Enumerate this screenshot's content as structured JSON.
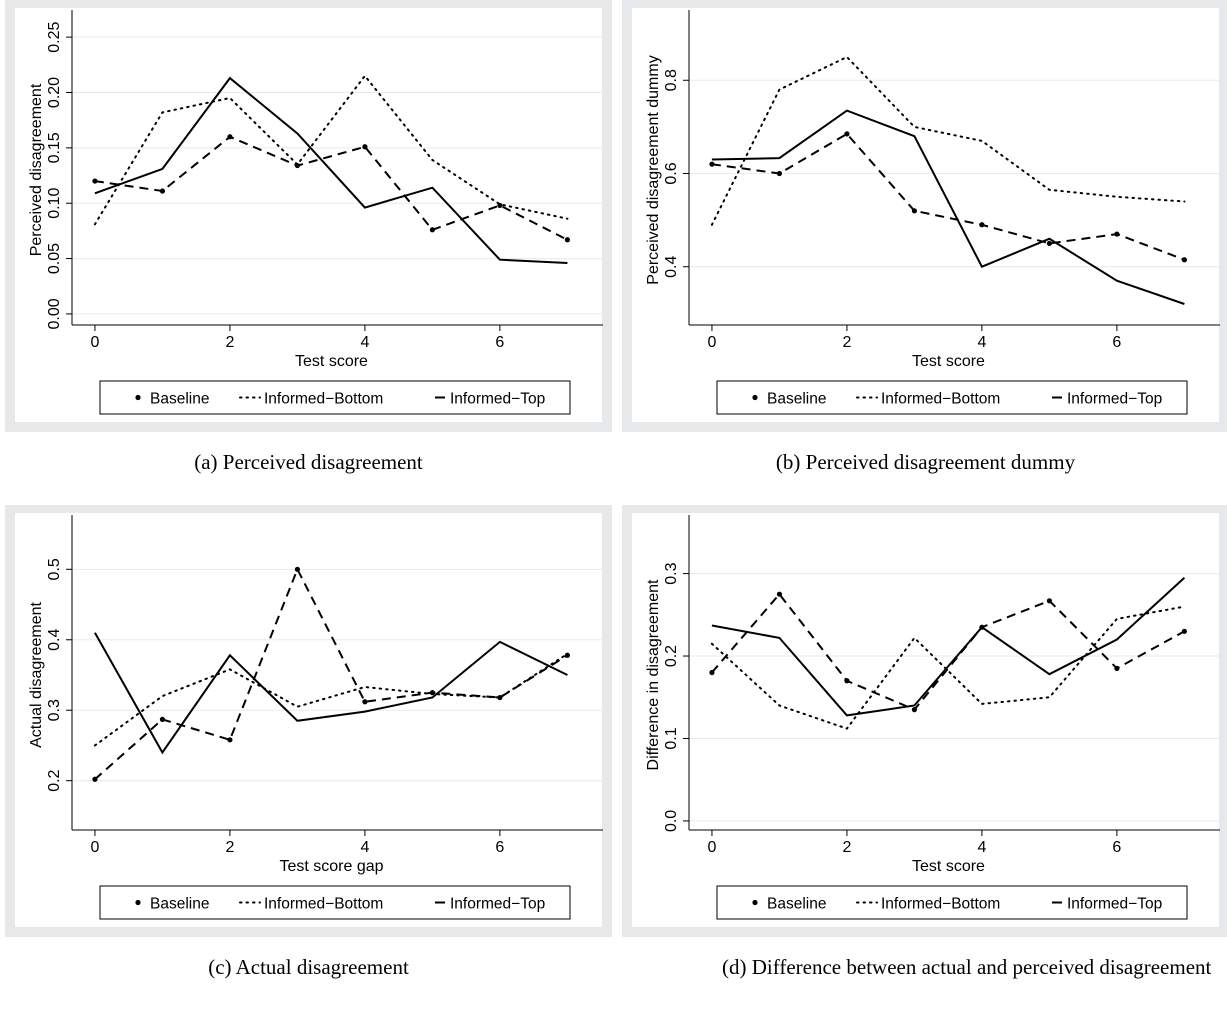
{
  "chart_data": [
    {
      "type": "line",
      "caption": "(a) Perceived disagreement",
      "xlabel": "Test score",
      "ylabel": "Perceived disagreement",
      "x": [
        0,
        1,
        2,
        3,
        4,
        5,
        6,
        7
      ],
      "xlim": [
        -0.34,
        7.35
      ],
      "xticks": [
        0,
        2,
        4,
        6
      ],
      "ylim": [
        -0.01,
        0.27
      ],
      "yticks": [
        {
          "value": 0,
          "label": "0.00"
        },
        0.05,
        {
          "value": 0.1,
          "label": "0.10"
        },
        0.15,
        {
          "value": 0.2,
          "label": "0.20"
        },
        0.25
      ],
      "grid": true,
      "series": [
        {
          "name": "Baseline",
          "color": "#000000",
          "line_style": "dash",
          "markers": true,
          "values": [
            0.12,
            0.111,
            0.16,
            0.134,
            0.151,
            0.076,
            0.098,
            0.067
          ]
        },
        {
          "name": "Informed−Bottom",
          "color": "#000000",
          "line_style": "dot",
          "markers": false,
          "values": [
            0.081,
            0.182,
            0.195,
            0.135,
            0.215,
            0.139,
            0.099,
            0.086
          ]
        },
        {
          "name": "Informed−Top",
          "color": "#000000",
          "line_style": "solid",
          "markers": false,
          "values": [
            0.109,
            0.131,
            0.213,
            0.163,
            0.096,
            0.114,
            0.049,
            0.046
          ]
        }
      ]
    },
    {
      "type": "line",
      "caption": "(b) Perceived disagreement dummy",
      "xlabel": "Test score",
      "ylabel": "Perceived disagreement dummy",
      "x": [
        0,
        1,
        2,
        3,
        4,
        5,
        6,
        7
      ],
      "xlim": [
        -0.34,
        7.35
      ],
      "xticks": [
        0,
        2,
        4,
        6
      ],
      "ylim": [
        0.275,
        0.94
      ],
      "yticks": [
        0.4,
        0.6,
        0.8
      ],
      "grid": true,
      "series": [
        {
          "name": "Baseline",
          "color": "#000000",
          "line_style": "dash",
          "markers": true,
          "values": [
            0.62,
            0.6,
            0.685,
            0.52,
            0.49,
            0.45,
            0.47,
            0.415
          ]
        },
        {
          "name": "Informed−Bottom",
          "color": "#000000",
          "line_style": "dot",
          "markers": false,
          "values": [
            0.49,
            0.78,
            0.85,
            0.7,
            0.67,
            0.565,
            0.55,
            0.54
          ]
        },
        {
          "name": "Informed−Top",
          "color": "#000000",
          "line_style": "solid",
          "markers": false,
          "values": [
            0.63,
            0.633,
            0.735,
            0.68,
            0.4,
            0.46,
            0.37,
            0.32
          ]
        }
      ]
    },
    {
      "type": "line",
      "caption": "(c) Actual disagreement",
      "xlabel": "Test score gap",
      "ylabel": "Actual disagreement",
      "x": [
        0,
        1,
        2,
        3,
        4,
        5,
        6,
        7
      ],
      "xlim": [
        -0.34,
        7.35
      ],
      "xticks": [
        0,
        2,
        4,
        6
      ],
      "ylim": [
        0.13,
        0.57
      ],
      "yticks": [
        0.2,
        0.3,
        0.4,
        0.5
      ],
      "grid": true,
      "series": [
        {
          "name": "Baseline",
          "color": "#000000",
          "line_style": "dash",
          "markers": true,
          "values": [
            0.202,
            0.287,
            0.258,
            0.5,
            0.312,
            0.325,
            0.318,
            0.378
          ]
        },
        {
          "name": "Informed−Bottom",
          "color": "#000000",
          "line_style": "dot",
          "markers": false,
          "values": [
            0.25,
            0.32,
            0.358,
            0.305,
            0.333,
            0.323,
            0.318,
            0.38
          ]
        },
        {
          "name": "Informed−Top",
          "color": "#000000",
          "line_style": "solid",
          "markers": false,
          "values": [
            0.41,
            0.24,
            0.378,
            0.285,
            0.298,
            0.318,
            0.397,
            0.35
          ]
        }
      ]
    },
    {
      "type": "line",
      "caption": "(d) Difference between actual and perceived disagreement",
      "xlabel": "Test score",
      "ylabel": "Difference in disagreement",
      "x": [
        0,
        1,
        2,
        3,
        4,
        5,
        6,
        7
      ],
      "xlim": [
        -0.34,
        7.35
      ],
      "xticks": [
        0,
        2,
        4,
        6
      ],
      "ylim": [
        -0.011,
        0.365
      ],
      "yticks": [
        {
          "value": 0,
          "label": "0.0"
        },
        0.1,
        0.2,
        0.3
      ],
      "grid": true,
      "series": [
        {
          "name": "Baseline",
          "color": "#000000",
          "line_style": "dash",
          "markers": true,
          "values": [
            0.18,
            0.275,
            0.17,
            0.135,
            0.235,
            0.267,
            0.185,
            0.23
          ]
        },
        {
          "name": "Informed−Bottom",
          "color": "#000000",
          "line_style": "dot",
          "markers": false,
          "values": [
            0.215,
            0.14,
            0.112,
            0.222,
            0.142,
            0.15,
            0.245,
            0.26
          ]
        },
        {
          "name": "Informed−Top",
          "color": "#000000",
          "line_style": "solid",
          "markers": false,
          "values": [
            0.237,
            0.222,
            0.128,
            0.14,
            0.235,
            0.178,
            0.22,
            0.295
          ]
        }
      ]
    }
  ]
}
